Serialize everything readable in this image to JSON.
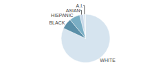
{
  "chart_data": {
    "type": "pie",
    "categories": [
      "WHITE",
      "A.I.",
      "ASIAN",
      "HISPANIC",
      "BLACK"
    ],
    "values": [
      82,
      1.5,
      2.5,
      7,
      7
    ],
    "colors": [
      "#d6e4ef",
      "#dce8f0",
      "#c8d8e8",
      "#7aaec4",
      "#5a8fa8"
    ]
  }
}
